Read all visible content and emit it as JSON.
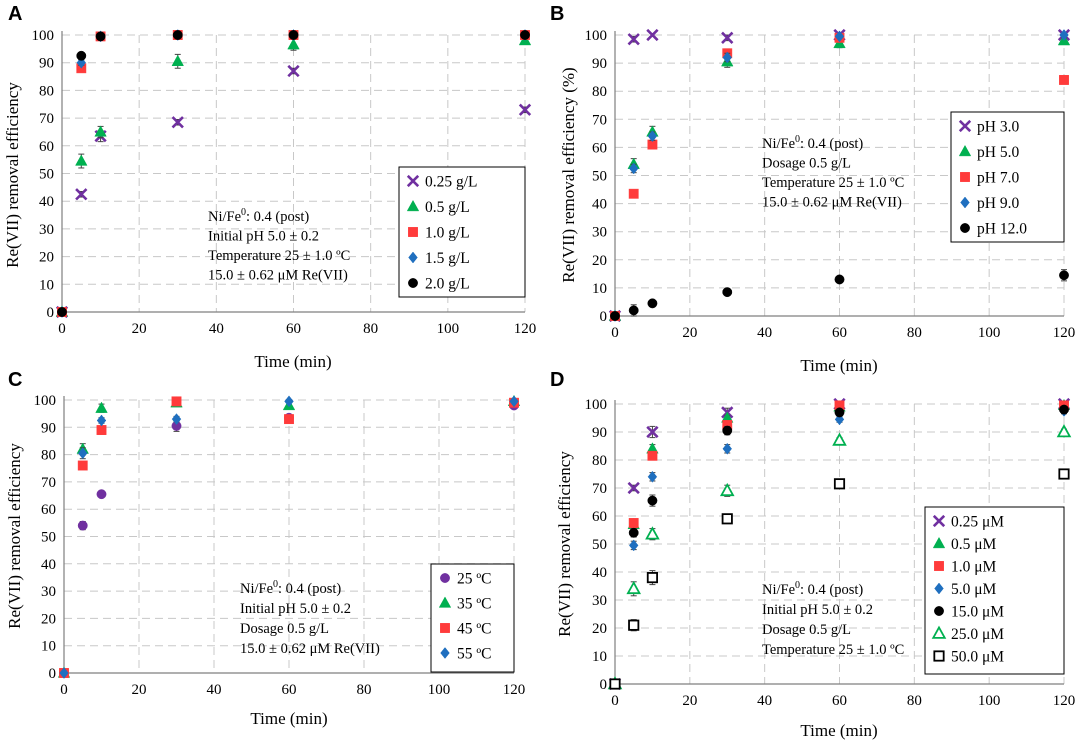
{
  "chart_data": [
    {
      "type": "scatter",
      "panel": "A",
      "xlabel": "Time (min)",
      "ylabel": "Re(VII) removal efficiency",
      "xlim": [
        0,
        120
      ],
      "ylim": [
        0,
        100
      ],
      "xticks": [
        0,
        20,
        40,
        60,
        80,
        100,
        120
      ],
      "yticks": [
        0,
        10,
        20,
        30,
        40,
        50,
        60,
        70,
        80,
        90,
        100
      ],
      "grid": true,
      "legend_position": "right",
      "annotation": [
        "Ni/Fe⁰: 0.4 (post)",
        "Initial pH 5.0 ± 0.2",
        "Temperature 25 ± 1.0 ºC",
        "15.0 ± 0.62 μM Re(VII)"
      ],
      "series": [
        {
          "name": "0.25 g/L",
          "marker": "x",
          "color": "#7030A0",
          "x": [
            0,
            5,
            10,
            30,
            60,
            120
          ],
          "y": [
            0,
            42.5,
            63.5,
            68.5,
            87,
            73
          ],
          "err": [
            0,
            1,
            2,
            1,
            1,
            1
          ]
        },
        {
          "name": "0.5 g/L",
          "marker": "triangle",
          "color": "#00B050",
          "x": [
            0,
            5,
            10,
            30,
            60,
            120
          ],
          "y": [
            0,
            54.5,
            65,
            90.5,
            96.5,
            98
          ],
          "err": [
            0,
            2.5,
            2,
            2.5,
            2,
            1
          ]
        },
        {
          "name": "1.0 g/L",
          "marker": "square",
          "color": "#FF3B3B",
          "x": [
            0,
            5,
            10,
            30,
            60,
            120
          ],
          "y": [
            0,
            88,
            99.5,
            100,
            100,
            100
          ],
          "err": [
            0,
            1,
            0.5,
            0,
            0,
            0
          ]
        },
        {
          "name": "1.5 g/L",
          "marker": "diamond",
          "color": "#1F6FBF",
          "x": [
            0,
            5,
            10,
            30,
            60,
            120
          ],
          "y": [
            0,
            90,
            99.5,
            100,
            100,
            100
          ],
          "err": [
            0,
            1,
            0.5,
            0,
            0,
            0
          ]
        },
        {
          "name": "2.0 g/L",
          "marker": "circle",
          "color": "#000000",
          "x": [
            0,
            5,
            10,
            30,
            60,
            120
          ],
          "y": [
            0,
            92.5,
            99.5,
            100,
            100,
            100
          ],
          "err": [
            0,
            1,
            0.5,
            0,
            0,
            0
          ]
        }
      ]
    },
    {
      "type": "scatter",
      "panel": "B",
      "xlabel": "Time (min)",
      "ylabel": "Re(VII) removal efficiency (%)",
      "xlim": [
        0,
        120
      ],
      "ylim": [
        0,
        100
      ],
      "xticks": [
        0,
        20,
        40,
        60,
        80,
        100,
        120
      ],
      "yticks": [
        0,
        10,
        20,
        30,
        40,
        50,
        60,
        70,
        80,
        90,
        100
      ],
      "grid": true,
      "legend_position": "right",
      "annotation": [
        "Ni/Fe⁰: 0.4 (post)",
        "Dosage 0.5 g/L",
        "Temperature 25 ± 1.0 ºC",
        "15.0 ± 0.62 μM Re(VII)"
      ],
      "series": [
        {
          "name": "pH 3.0",
          "marker": "x",
          "color": "#7030A0",
          "x": [
            0,
            5,
            10,
            30,
            60,
            120
          ],
          "y": [
            0,
            98.5,
            100,
            99,
            100,
            100
          ],
          "err": [
            0,
            1,
            0.5,
            1,
            0.5,
            0.5
          ]
        },
        {
          "name": "pH 5.0",
          "marker": "triangle",
          "color": "#00B050",
          "x": [
            0,
            5,
            10,
            30,
            60,
            120
          ],
          "y": [
            0,
            54,
            65.5,
            90.5,
            97,
            98
          ],
          "err": [
            0,
            2,
            2,
            2,
            1.5,
            1
          ]
        },
        {
          "name": "pH 7.0",
          "marker": "square",
          "color": "#FF3B3B",
          "x": [
            0,
            5,
            10,
            30,
            60,
            120
          ],
          "y": [
            0,
            43.5,
            61,
            93.5,
            99,
            84
          ],
          "err": [
            0,
            1,
            1.5,
            1.5,
            1,
            1
          ]
        },
        {
          "name": "pH 9.0",
          "marker": "diamond",
          "color": "#1F6FBF",
          "x": [
            0,
            5,
            10,
            30,
            60,
            120
          ],
          "y": [
            0,
            52.5,
            64,
            92,
            99.5,
            100
          ],
          "err": [
            0,
            1.5,
            1.5,
            1.5,
            0.5,
            0.5
          ]
        },
        {
          "name": "pH 12.0",
          "marker": "circle",
          "color": "#000000",
          "x": [
            0,
            5,
            10,
            30,
            60,
            120
          ],
          "y": [
            0,
            2,
            4.5,
            8.5,
            13,
            14.5
          ],
          "err": [
            0,
            2,
            1,
            1,
            1,
            2
          ]
        }
      ]
    },
    {
      "type": "scatter",
      "panel": "C",
      "xlabel": "Time (min)",
      "ylabel": "Re(VII) removal efficiency",
      "xlim": [
        0,
        120
      ],
      "ylim": [
        0,
        100
      ],
      "xticks": [
        0,
        20,
        40,
        60,
        80,
        100,
        120
      ],
      "yticks": [
        0,
        10,
        20,
        30,
        40,
        50,
        60,
        70,
        80,
        90,
        100
      ],
      "grid": true,
      "legend_position": "bottom-right",
      "annotation": [
        "Ni/Fe⁰: 0.4 (post)",
        "Initial pH 5.0 ± 0.2",
        "Dosage 0.5 g/L",
        "15.0 ± 0.62 μM Re(VII)"
      ],
      "series": [
        {
          "name": "25 ºC",
          "marker": "circle",
          "color": "#7030A0",
          "x": [
            0,
            5,
            10,
            30,
            60,
            120
          ],
          "y": [
            0,
            54,
            65.5,
            90.5,
            93.5,
            98
          ],
          "err": [
            0,
            1.5,
            1,
            2,
            1,
            1
          ]
        },
        {
          "name": "35 ºC",
          "marker": "triangle",
          "color": "#00B050",
          "x": [
            0,
            5,
            10,
            30,
            60,
            120
          ],
          "y": [
            0,
            82,
            97,
            99,
            98,
            99.5
          ],
          "err": [
            0,
            2,
            1.5,
            1,
            1,
            0.5
          ]
        },
        {
          "name": "45 ºC",
          "marker": "square",
          "color": "#FF3B3B",
          "x": [
            0,
            5,
            10,
            30,
            60,
            120
          ],
          "y": [
            0,
            76,
            89,
            99.5,
            93,
            99
          ],
          "err": [
            0,
            1,
            1.5,
            0.5,
            1,
            0.5
          ]
        },
        {
          "name": "55 ºC",
          "marker": "diamond",
          "color": "#1F6FBF",
          "x": [
            0,
            5,
            10,
            30,
            60,
            120
          ],
          "y": [
            0,
            80.5,
            92.5,
            93,
            99.5,
            99.5
          ],
          "err": [
            0,
            2,
            1,
            1,
            0.5,
            0.5
          ]
        }
      ]
    },
    {
      "type": "scatter",
      "panel": "D",
      "xlabel": "Time (min)",
      "ylabel": "Re(VII) removal efficiency",
      "xlim": [
        0,
        120
      ],
      "ylim": [
        0,
        100
      ],
      "xticks": [
        0,
        20,
        40,
        60,
        80,
        100,
        120
      ],
      "yticks": [
        0,
        10,
        20,
        30,
        40,
        50,
        60,
        70,
        80,
        90,
        100
      ],
      "grid": true,
      "legend_position": "bottom-right",
      "annotation": [
        "Ni/Fe⁰: 0.4 (post)",
        "Initial pH 5.0 ± 0.2",
        "Dosage 0.5 g/L",
        "Temperature 25 ± 1.0 ºC"
      ],
      "series": [
        {
          "name": "0.25 μM",
          "marker": "x",
          "color": "#7030A0",
          "x": [
            0,
            5,
            10,
            30,
            60,
            120
          ],
          "y": [
            0,
            70,
            90,
            97,
            100,
            100
          ],
          "err": [
            0,
            1,
            2,
            1.5,
            0.5,
            0.5
          ]
        },
        {
          "name": "0.5 μM",
          "marker": "triangle",
          "color": "#00B050",
          "x": [
            0,
            5,
            10,
            30,
            60,
            120
          ],
          "y": [
            0,
            57,
            84,
            95,
            99,
            99.5
          ],
          "err": [
            0,
            1,
            1.5,
            1,
            0.5,
            0.5
          ]
        },
        {
          "name": "1.0 μM",
          "marker": "square",
          "color": "#FF3B3B",
          "x": [
            0,
            5,
            10,
            30,
            60,
            120
          ],
          "y": [
            0,
            57.5,
            81.5,
            92.5,
            99.5,
            99.5
          ],
          "err": [
            0,
            1,
            1.5,
            1,
            0.5,
            0.5
          ]
        },
        {
          "name": "5.0 μM",
          "marker": "diamond",
          "color": "#1F6FBF",
          "x": [
            0,
            5,
            10,
            30,
            60,
            120
          ],
          "y": [
            0,
            49.5,
            74,
            84,
            94.5,
            97.5
          ],
          "err": [
            0,
            1.5,
            1.5,
            1.5,
            1,
            1
          ]
        },
        {
          "name": "15.0 μM",
          "marker": "circle",
          "color": "#000000",
          "x": [
            0,
            5,
            10,
            30,
            60,
            120
          ],
          "y": [
            0,
            54,
            65.5,
            90.5,
            97,
            98
          ],
          "err": [
            0,
            1.5,
            2,
            1.5,
            1,
            1
          ]
        },
        {
          "name": "25.0 μM",
          "marker": "triangle-open",
          "color": "#00B050",
          "x": [
            0,
            5,
            10,
            30,
            60,
            120
          ],
          "y": [
            0,
            34,
            53.5,
            69,
            87,
            90
          ],
          "err": [
            0,
            2.5,
            2,
            2,
            1,
            1
          ]
        },
        {
          "name": "50.0 μM",
          "marker": "square-open",
          "color": "#000000",
          "x": [
            0,
            5,
            10,
            30,
            60,
            120
          ],
          "y": [
            0,
            21,
            38,
            59,
            71.5,
            75
          ],
          "err": [
            0,
            2,
            2.5,
            1.5,
            1,
            1
          ]
        }
      ]
    }
  ]
}
